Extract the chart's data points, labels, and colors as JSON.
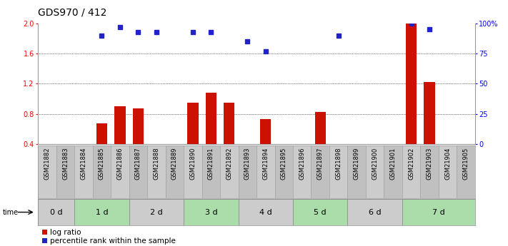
{
  "title": "GDS970 / 412",
  "samples": [
    "GSM21882",
    "GSM21883",
    "GSM21884",
    "GSM21885",
    "GSM21886",
    "GSM21887",
    "GSM21888",
    "GSM21889",
    "GSM21890",
    "GSM21891",
    "GSM21892",
    "GSM21893",
    "GSM21894",
    "GSM21895",
    "GSM21896",
    "GSM21897",
    "GSM21898",
    "GSM21899",
    "GSM21900",
    "GSM21901",
    "GSM21902",
    "GSM21903",
    "GSM21904",
    "GSM21905"
  ],
  "log_ratio": [
    0.0,
    0.0,
    0.0,
    0.67,
    0.9,
    0.87,
    0.0,
    0.0,
    0.95,
    1.08,
    0.95,
    0.0,
    0.73,
    0.0,
    0.0,
    0.82,
    0.0,
    0.0,
    0.0,
    0.0,
    2.0,
    1.22,
    0.0,
    0.0
  ],
  "percentile_pct": [
    0,
    0,
    0,
    90,
    97,
    93,
    93,
    0,
    93,
    93,
    0,
    85,
    77,
    0,
    0,
    0,
    90,
    0,
    0,
    0,
    100,
    95,
    0,
    0
  ],
  "time_groups": [
    {
      "label": "0 d",
      "start": 0,
      "end": 2,
      "color": "#cccccc"
    },
    {
      "label": "1 d",
      "start": 2,
      "end": 5,
      "color": "#aaddaa"
    },
    {
      "label": "2 d",
      "start": 5,
      "end": 8,
      "color": "#cccccc"
    },
    {
      "label": "3 d",
      "start": 8,
      "end": 11,
      "color": "#aaddaa"
    },
    {
      "label": "4 d",
      "start": 11,
      "end": 14,
      "color": "#cccccc"
    },
    {
      "label": "5 d",
      "start": 14,
      "end": 17,
      "color": "#aaddaa"
    },
    {
      "label": "6 d",
      "start": 17,
      "end": 20,
      "color": "#cccccc"
    },
    {
      "label": "7 d",
      "start": 20,
      "end": 24,
      "color": "#aaddaa"
    }
  ],
  "ylim_left": [
    0.4,
    2.0
  ],
  "yticks_left": [
    0.4,
    0.8,
    1.2,
    1.6,
    2.0
  ],
  "yticks_right": [
    0,
    25,
    50,
    75,
    100
  ],
  "grid_vals": [
    0.8,
    1.2,
    1.6
  ],
  "bar_color": "#cc1100",
  "square_color": "#2222cc",
  "bg_color": "#ffffff",
  "title_fontsize": 10,
  "axis_fontsize": 7,
  "legend_fontsize": 7.5,
  "time_fontsize": 8,
  "sample_fontsize": 6
}
